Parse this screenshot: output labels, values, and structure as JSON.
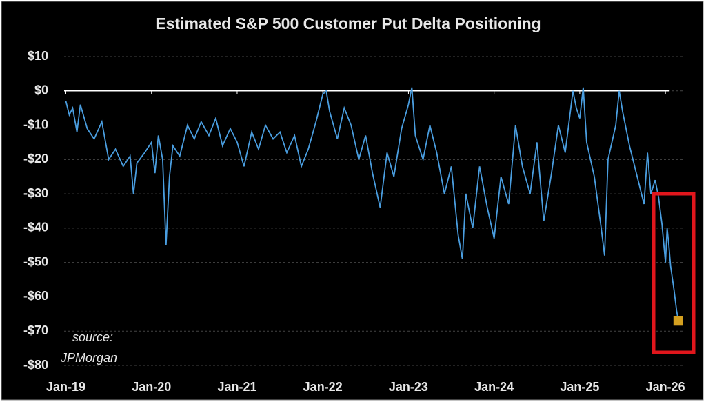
{
  "chart_data": {
    "type": "line",
    "title": "Estimated S&P 500 Customer Put Delta Positioning",
    "annotation": [
      "source:",
      "JPMorgan"
    ],
    "color": "#4a9ee0",
    "marker_color": "#d4a020",
    "highlight_color": "#e0161c",
    "x": [
      2019.0,
      2019.04,
      2019.08,
      2019.13,
      2019.17,
      2019.25,
      2019.33,
      2019.42,
      2019.5,
      2019.58,
      2019.67,
      2019.75,
      2019.79,
      2019.83,
      2019.92,
      2020.0,
      2020.04,
      2020.08,
      2020.13,
      2020.17,
      2020.21,
      2020.25,
      2020.33,
      2020.42,
      2020.5,
      2020.58,
      2020.67,
      2020.75,
      2020.83,
      2020.92,
      2021.0,
      2021.08,
      2021.17,
      2021.25,
      2021.33,
      2021.42,
      2021.5,
      2021.58,
      2021.67,
      2021.75,
      2021.83,
      2021.92,
      2022.0,
      2022.04,
      2022.08,
      2022.17,
      2022.25,
      2022.33,
      2022.42,
      2022.5,
      2022.58,
      2022.67,
      2022.75,
      2022.83,
      2022.92,
      2023.0,
      2023.04,
      2023.08,
      2023.17,
      2023.25,
      2023.33,
      2023.42,
      2023.5,
      2023.58,
      2023.63,
      2023.67,
      2023.75,
      2023.83,
      2023.92,
      2024.0,
      2024.08,
      2024.17,
      2024.25,
      2024.33,
      2024.42,
      2024.5,
      2024.58,
      2024.67,
      2024.75,
      2024.83,
      2024.92,
      2024.96,
      2025.0,
      2025.04,
      2025.08,
      2025.17,
      2025.25,
      2025.29,
      2025.33,
      2025.42,
      2025.46,
      2025.5,
      2025.58,
      2025.67,
      2025.75,
      2025.79,
      2025.83,
      2025.88,
      2025.92,
      2025.96,
      2026.0,
      2026.02,
      2026.04,
      2026.06,
      2026.1,
      2026.13,
      2026.15
    ],
    "values": [
      -3,
      -7,
      -5,
      -12,
      -4,
      -11,
      -14,
      -9,
      -20,
      -17,
      -22,
      -19,
      -30,
      -21,
      -18,
      -15,
      -24,
      -13,
      -20,
      -45,
      -25,
      -16,
      -19,
      -10,
      -14,
      -9,
      -13,
      -8,
      -16,
      -11,
      -15,
      -22,
      -12,
      -17,
      -10,
      -14,
      -12,
      -18,
      -13,
      -22,
      -17,
      -9,
      -1,
      0,
      -6,
      -14,
      -5,
      -10,
      -20,
      -13,
      -24,
      -34,
      -18,
      -25,
      -11,
      -4,
      1,
      -13,
      -20,
      -10,
      -18,
      -30,
      -22,
      -42,
      -49,
      -30,
      -40,
      -22,
      -34,
      -43,
      -25,
      -33,
      -10,
      -22,
      -30,
      -15,
      -38,
      -24,
      -10,
      -18,
      0,
      -5,
      -8,
      1,
      -15,
      -25,
      -40,
      -48,
      -20,
      -10,
      0,
      -6,
      -16,
      -25,
      -33,
      -18,
      -30,
      -26,
      -31,
      -39,
      -50,
      -40,
      -45,
      -51,
      -58,
      -64,
      -67
    ],
    "xlim": [
      2018.98,
      2026.2
    ],
    "xticks": [
      {
        "value": 2019,
        "label": "Jan-19"
      },
      {
        "value": 2020,
        "label": "Jan-20"
      },
      {
        "value": 2021,
        "label": "Jan-21"
      },
      {
        "value": 2022,
        "label": "Jan-22"
      },
      {
        "value": 2023,
        "label": "Jan-23"
      },
      {
        "value": 2024,
        "label": "Jan-24"
      },
      {
        "value": 2025,
        "label": "Jan-25"
      },
      {
        "value": 2026,
        "label": "Jan-26"
      }
    ],
    "ylim": [
      -80,
      10
    ],
    "yticks": [
      {
        "value": 10,
        "label": "$10"
      },
      {
        "value": 0,
        "label": "$0"
      },
      {
        "value": -10,
        "label": "-$10"
      },
      {
        "value": -20,
        "label": "-$20"
      },
      {
        "value": -30,
        "label": "-$30"
      },
      {
        "value": -40,
        "label": "-$40"
      },
      {
        "value": -50,
        "label": "-$50"
      },
      {
        "value": -60,
        "label": "-$60"
      },
      {
        "value": -70,
        "label": "-$70"
      },
      {
        "value": -80,
        "label": "-$80"
      }
    ],
    "grid": true
  }
}
